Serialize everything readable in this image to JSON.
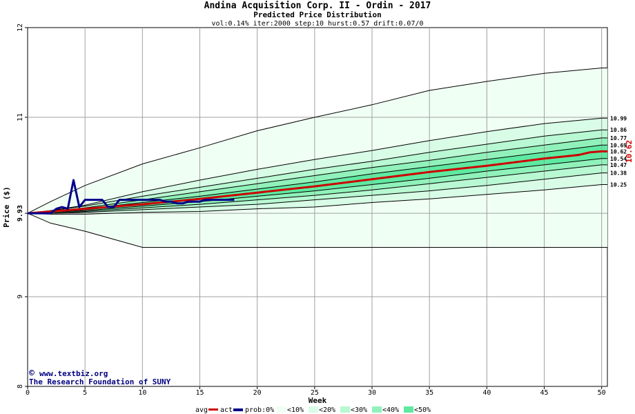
{
  "header": {
    "title": "Andina Acquisition Corp. II - Ordin - 2017",
    "subtitle": "Predicted Price Distribution",
    "params": "vol:0.14% iter:2000 step:10 hurst:0.57 drift:0.07/0"
  },
  "watermark": {
    "symbol": "©",
    "url": "www.textbiz.org",
    "org": "The Research Foundation of SUNY"
  },
  "legend": {
    "avg": "avg",
    "act": "act",
    "prob": "prob:0%",
    "b10": "<10%",
    "b20": "<20%",
    "b30": "<30%",
    "b40": "<40%",
    "b50": "<50%"
  },
  "colors": {
    "band1": "#f0fff4",
    "band2": "#d8fce6",
    "band3": "#b8f8d2",
    "band4": "#90f2ba",
    "band5": "#5ee9a0",
    "avg": "#cc0000",
    "act": "#00008b",
    "grid": "#a0a0a0",
    "quantile_line": "#000000"
  },
  "chart_data": {
    "type": "area",
    "xlabel": "Week",
    "ylabel": "Price ($)",
    "xlim": [
      0,
      50.5
    ],
    "ylim": [
      8,
      12
    ],
    "x_ticks": [
      0,
      5,
      10,
      15,
      20,
      25,
      30,
      35,
      40,
      45,
      50
    ],
    "y_ticks": [
      {
        "value": 8,
        "label": "8"
      },
      {
        "value": 9,
        "label": "9"
      },
      {
        "value": 9.93,
        "label": "9.93"
      },
      {
        "value": 11,
        "label": "11"
      },
      {
        "value": 12,
        "label": "12"
      }
    ],
    "grid": true,
    "start_value": 9.93,
    "last_value_label": "10.62",
    "quantile_levels": [
      0,
      10,
      20,
      30,
      40,
      50,
      60,
      70,
      80,
      90,
      100
    ],
    "end_labels": [
      "10.99",
      "10.86",
      "10.77",
      "10.69",
      "10.62",
      "10.54",
      "10.47",
      "10.38",
      "10.25"
    ],
    "quantiles": {
      "x": [
        0,
        2,
        5,
        10,
        15,
        20,
        25,
        30,
        35,
        40,
        45,
        50,
        50.5
      ],
      "series": [
        [
          9.93,
          10.06,
          10.24,
          10.48,
          10.66,
          10.85,
          11.0,
          11.14,
          11.3,
          11.4,
          11.49,
          11.55,
          11.55
        ],
        [
          9.93,
          9.96,
          10.02,
          10.17,
          10.3,
          10.42,
          10.53,
          10.63,
          10.74,
          10.84,
          10.93,
          10.99,
          10.99
        ],
        [
          9.93,
          9.96,
          10.01,
          10.12,
          10.22,
          10.32,
          10.42,
          10.51,
          10.61,
          10.7,
          10.79,
          10.86,
          10.86
        ],
        [
          9.93,
          9.95,
          9.99,
          10.08,
          10.17,
          10.26,
          10.35,
          10.44,
          10.52,
          10.61,
          10.69,
          10.77,
          10.77
        ],
        [
          9.93,
          9.95,
          9.98,
          10.05,
          10.12,
          10.2,
          10.28,
          10.37,
          10.45,
          10.53,
          10.61,
          10.69,
          10.69
        ],
        [
          9.93,
          9.94,
          9.97,
          10.03,
          10.09,
          10.16,
          10.23,
          10.31,
          10.39,
          10.46,
          10.54,
          10.62,
          10.62
        ],
        [
          9.93,
          9.94,
          9.96,
          10.01,
          10.06,
          10.12,
          10.18,
          10.25,
          10.32,
          10.4,
          10.47,
          10.54,
          10.54
        ],
        [
          9.93,
          9.93,
          9.95,
          9.99,
          10.03,
          10.08,
          10.13,
          10.19,
          10.26,
          10.33,
          10.4,
          10.47,
          10.47
        ],
        [
          9.93,
          9.93,
          9.94,
          9.97,
          10.0,
          10.03,
          10.08,
          10.13,
          10.18,
          10.24,
          10.31,
          10.38,
          10.38
        ],
        [
          9.93,
          9.92,
          9.92,
          9.94,
          9.95,
          9.98,
          10.0,
          10.05,
          10.09,
          10.14,
          10.19,
          10.25,
          10.25
        ],
        [
          9.93,
          9.82,
          9.73,
          9.55,
          9.55,
          9.55,
          9.55,
          9.55,
          9.55,
          9.55,
          9.55,
          9.55,
          9.55
        ]
      ]
    },
    "series": [
      {
        "name": "avg",
        "x": [
          0,
          5,
          10,
          15,
          20,
          25,
          30,
          35,
          40,
          45,
          48,
          49,
          50,
          50.5
        ],
        "values": [
          9.93,
          9.98,
          10.03,
          10.09,
          10.16,
          10.23,
          10.31,
          10.39,
          10.46,
          10.54,
          10.58,
          10.61,
          10.62,
          10.62
        ]
      },
      {
        "name": "act",
        "x": [
          0,
          0.5,
          1,
          1.5,
          2,
          2.5,
          3,
          3.5,
          4,
          4.5,
          5,
          5.5,
          6,
          6.5,
          7,
          7.5,
          8,
          8.5,
          9,
          9.5,
          10,
          10.5,
          11,
          11.5,
          12,
          12.5,
          13,
          13.5,
          14,
          14.5,
          15,
          15.5,
          16,
          17,
          18
        ],
        "values": [
          9.93,
          9.93,
          9.93,
          9.93,
          9.93,
          9.98,
          10.0,
          9.98,
          10.3,
          10.0,
          10.08,
          10.08,
          10.08,
          10.08,
          10.0,
          10.0,
          10.08,
          10.08,
          10.08,
          10.08,
          10.08,
          10.08,
          10.08,
          10.08,
          10.06,
          10.06,
          10.04,
          10.04,
          10.06,
          10.06,
          10.06,
          10.08,
          10.08,
          10.08,
          10.08
        ]
      }
    ]
  }
}
